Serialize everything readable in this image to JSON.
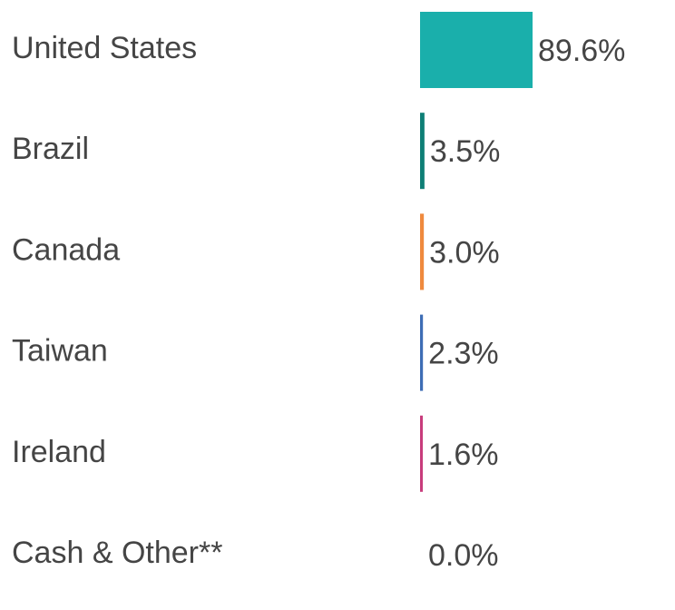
{
  "chart_data": {
    "type": "bar",
    "orientation": "horizontal",
    "categories": [
      "United States",
      "Brazil",
      "Canada",
      "Taiwan",
      "Ireland",
      "Cash & Other**"
    ],
    "values": [
      89.6,
      3.5,
      3.0,
      2.3,
      1.6,
      0.0
    ],
    "value_labels": [
      "89.6%",
      "3.5%",
      "3.0%",
      "2.3%",
      "1.6%",
      "0.0%"
    ],
    "colors": [
      "#1aafab",
      "#0e7f76",
      "#ef8a3e",
      "#3e6db5",
      "#c83c7c",
      "#999999"
    ]
  }
}
